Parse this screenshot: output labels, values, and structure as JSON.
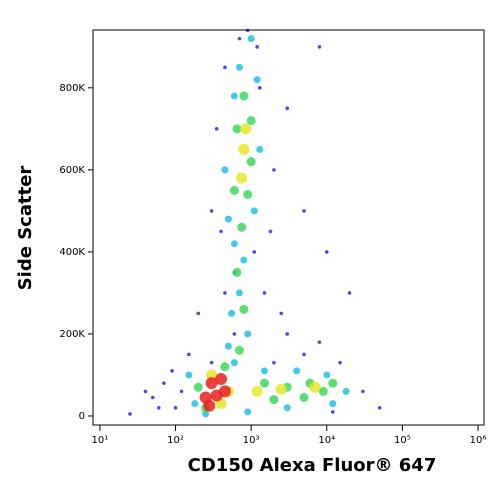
{
  "chart_data": {
    "type": "scatter",
    "log_x": true,
    "x_label": "CD150 Alexa Fluor® 647",
    "y_label": "Side Scatter",
    "xlim": [
      8.1,
      1200000
    ],
    "ylim": [
      -22000,
      941000
    ],
    "xticks": [
      {
        "value": 10,
        "label": "10¹"
      },
      {
        "value": 100,
        "label": "10²"
      },
      {
        "value": 1000,
        "label": "10³"
      },
      {
        "value": 10000,
        "label": "10⁴"
      },
      {
        "value": 100000,
        "label": "10⁵"
      },
      {
        "value": 1000000,
        "label": "10⁶"
      }
    ],
    "yticks": [
      0,
      {
        "value": 200000,
        "label": "200K"
      },
      {
        "value": 400000,
        "label": "400K"
      },
      {
        "value": 600000,
        "label": "600K"
      },
      {
        "value": 800000,
        "label": "800K"
      }
    ],
    "series": [
      {
        "color": "#2a2ae0",
        "x": [
          60,
          40,
          150,
          90,
          25,
          200,
          300,
          400,
          600,
          1500,
          2500,
          3000,
          5000,
          8000,
          15000,
          30000,
          50000,
          2000,
          3000,
          1200,
          700,
          900,
          5000,
          10000,
          350,
          450,
          1800,
          20000,
          100,
          70,
          600,
          2000,
          12000,
          300,
          120,
          1300,
          1100,
          450,
          8000,
          50
        ],
        "values": [
          20000,
          60000,
          150000,
          110000,
          5000,
          250000,
          500000,
          450000,
          350000,
          300000,
          250000,
          200000,
          150000,
          180000,
          130000,
          60000,
          20000,
          600000,
          750000,
          900000,
          920000,
          940000,
          500000,
          400000,
          700000,
          850000,
          450000,
          300000,
          20000,
          80000,
          200000,
          130000,
          10000,
          130000,
          60000,
          800000,
          400000,
          300000,
          900000,
          45000
        ]
      },
      {
        "color": "#22c0e8",
        "x": [
          700,
          600,
          1200,
          500,
          1100,
          600,
          800,
          700,
          550,
          900,
          500,
          150,
          180,
          600,
          1500,
          4000,
          10000,
          18000,
          12000,
          3000,
          900,
          250,
          1000,
          450,
          1300
        ],
        "values": [
          850000,
          780000,
          820000,
          480000,
          500000,
          420000,
          380000,
          300000,
          250000,
          200000,
          170000,
          100000,
          30000,
          130000,
          110000,
          110000,
          100000,
          60000,
          30000,
          20000,
          10000,
          5000,
          920000,
          600000,
          650000
        ]
      },
      {
        "color": "#3ed85a",
        "x": [
          800,
          650,
          1000,
          600,
          900,
          1000,
          750,
          650,
          800,
          700,
          200,
          450,
          250,
          1500,
          3000,
          6000,
          9000,
          2000,
          5000,
          12000
        ],
        "values": [
          780000,
          700000,
          720000,
          550000,
          540000,
          620000,
          460000,
          350000,
          260000,
          160000,
          70000,
          120000,
          20000,
          80000,
          70000,
          80000,
          60000,
          40000,
          45000,
          80000
        ]
      },
      {
        "color": "#e6e62a",
        "x": [
          800,
          750,
          850,
          300,
          500,
          1200,
          2500,
          7000,
          400
        ],
        "values": [
          650000,
          580000,
          700000,
          100000,
          60000,
          60000,
          65000,
          70000,
          30000
        ]
      },
      {
        "color": "#e82020",
        "x": [
          300,
          250,
          400,
          350,
          450,
          280
        ],
        "values": [
          80000,
          45000,
          90000,
          50000,
          60000,
          25000
        ]
      }
    ]
  }
}
